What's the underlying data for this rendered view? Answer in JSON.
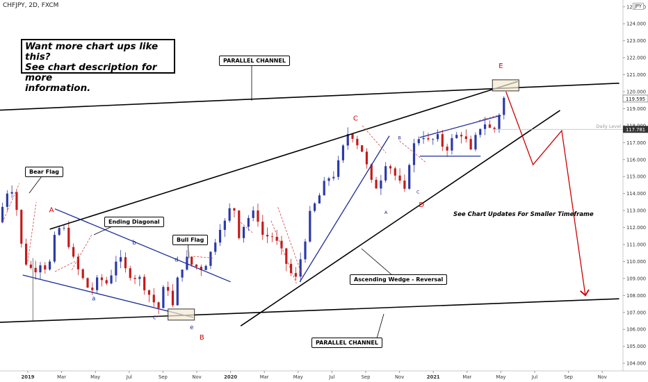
{
  "header": {
    "symbol": "CHFJPY, 2D, FXCM",
    "currency": "JPY"
  },
  "callout": {
    "line1": "Want more chart ups like this?",
    "line2": "See chart description for more",
    "line3": "information."
  },
  "labels": {
    "parallel_top": "PARALLEL CHANNEL",
    "parallel_bottom": "PARALLEL CHANNEL",
    "bear_flag": "Bear Flag",
    "ending_diagonal": "Ending Diagonal",
    "bull_flag": "Bull Flag",
    "ascending_wedge": "Ascending Wedge - Reversal",
    "updates_note": "See Chart Updates For Smaller Timeframe",
    "daily_level": "Daily Level"
  },
  "chart_data": {
    "type": "candlestick",
    "symbol": "CHFJPY",
    "timeframe": "2D",
    "y_range": [
      103.8,
      125.4
    ],
    "y_ticks": [
      104,
      105,
      106,
      107,
      108,
      109,
      110,
      111,
      112,
      113,
      114,
      115,
      116,
      117,
      118,
      119,
      120,
      121,
      122,
      123,
      124,
      125
    ],
    "y_tick_labels": [
      "104.000",
      "105.000",
      "106.000",
      "107.000",
      "108.000",
      "109.000",
      "110.000",
      "111.000",
      "112.000",
      "113.000",
      "114.000",
      "115.000",
      "116.000",
      "117.000",
      "118.000",
      "119.000",
      "120.000",
      "121.000",
      "122.000",
      "123.000",
      "124.000",
      "125.000"
    ],
    "x_tick_labels": [
      "2019",
      "Mar",
      "May",
      "Jul",
      "Sep",
      "Nov",
      "2020",
      "Mar",
      "May",
      "Jul",
      "Sep",
      "Nov",
      "2021",
      "Mar",
      "May",
      "Jul",
      "Sep",
      "Nov"
    ],
    "x_ticks_month_index": [
      0,
      2,
      4,
      6,
      8,
      10,
      12,
      14,
      16,
      18,
      20,
      22,
      24,
      26,
      28,
      30,
      32,
      34
    ],
    "price_labels": {
      "current": "119.595",
      "daily_level": "117.781"
    },
    "current_price": 119.595,
    "daily_level": 117.781,
    "wave_labels": [
      "A",
      "B",
      "C",
      "D",
      "E",
      "a",
      "b",
      "c",
      "d",
      "e",
      "A",
      "B",
      "C"
    ],
    "price_path": [
      [
        -1.5,
        112.3
      ],
      [
        -0.8,
        114.6
      ],
      [
        -0.5,
        114.0
      ],
      [
        0.0,
        110.2
      ],
      [
        0.6,
        109.4
      ],
      [
        1.0,
        110.0
      ],
      [
        1.5,
        109.5
      ],
      [
        2.0,
        112.0
      ],
      [
        2.5,
        111.8
      ],
      [
        3.0,
        110.0
      ],
      [
        3.5,
        109.0
      ],
      [
        4.0,
        108.2
      ],
      [
        4.5,
        109.0
      ],
      [
        5.0,
        108.7
      ],
      [
        5.6,
        110.4
      ],
      [
        6.0,
        109.5
      ],
      [
        6.5,
        109.2
      ],
      [
        7.0,
        108.9
      ],
      [
        7.5,
        108.0
      ],
      [
        8.0,
        107.2
      ],
      [
        8.5,
        109.0
      ],
      [
        8.8,
        107.0
      ],
      [
        9.2,
        109.2
      ],
      [
        9.6,
        110.2
      ],
      [
        10.0,
        109.8
      ],
      [
        10.5,
        109.6
      ],
      [
        10.8,
        109.9
      ],
      [
        11.2,
        110.7
      ],
      [
        11.6,
        112.1
      ],
      [
        12.0,
        112.3
      ],
      [
        12.4,
        113.6
      ],
      [
        12.8,
        111.5
      ],
      [
        13.2,
        112.5
      ],
      [
        13.8,
        112.9
      ],
      [
        14.2,
        111.5
      ],
      [
        14.8,
        111.5
      ],
      [
        15.3,
        110.5
      ],
      [
        15.9,
        109.2
      ],
      [
        16.1,
        108.8
      ],
      [
        16.5,
        110.5
      ],
      [
        17.0,
        112.8
      ],
      [
        17.6,
        114.0
      ],
      [
        18.0,
        114.9
      ],
      [
        18.5,
        115.2
      ],
      [
        18.8,
        116.2
      ],
      [
        19.3,
        117.8
      ],
      [
        19.7,
        117.1
      ],
      [
        20.1,
        116.5
      ],
      [
        20.6,
        114.6
      ],
      [
        21.0,
        114.4
      ],
      [
        21.5,
        116.0
      ],
      [
        22.0,
        115.1
      ],
      [
        22.6,
        114.0
      ],
      [
        22.9,
        116.2
      ],
      [
        23.2,
        117.0
      ],
      [
        23.6,
        117.6
      ],
      [
        24.0,
        117.0
      ],
      [
        24.5,
        117.3
      ],
      [
        25.0,
        116.6
      ],
      [
        25.5,
        117.3
      ],
      [
        26.0,
        117.6
      ],
      [
        26.5,
        116.4
      ],
      [
        27.0,
        117.9
      ],
      [
        27.4,
        118.2
      ],
      [
        27.8,
        117.5
      ],
      [
        28.2,
        118.8
      ],
      [
        28.4,
        119.6
      ]
    ],
    "trend_lines": [
      {
        "name": "parallel-channel-top",
        "color": "#000000",
        "points": [
          [
            -2.0,
            118.9
          ],
          [
            35.0,
            120.5
          ]
        ]
      },
      {
        "name": "parallel-channel-bottom",
        "color": "#000000",
        "points": [
          [
            -2.0,
            106.4
          ],
          [
            35.0,
            107.8
          ]
        ]
      },
      {
        "name": "wedge-upper",
        "color": "#000000",
        "points": [
          [
            1.3,
            111.9
          ],
          [
            29.0,
            120.6
          ]
        ]
      },
      {
        "name": "wedge-lower",
        "color": "#000000",
        "points": [
          [
            12.6,
            106.2
          ],
          [
            31.5,
            118.9
          ]
        ]
      },
      {
        "name": "diagonal-upper",
        "color": "#1a2b99",
        "points": [
          [
            1.6,
            113.1
          ],
          [
            12.0,
            108.8
          ]
        ]
      },
      {
        "name": "diagonal-lower",
        "color": "#1a2b99",
        "points": [
          [
            -0.3,
            109.2
          ],
          [
            9.8,
            106.7
          ]
        ]
      },
      {
        "name": "c-wave-line",
        "color": "#1a2b99",
        "points": [
          [
            16.1,
            108.8
          ],
          [
            21.4,
            117.4
          ]
        ]
      },
      {
        "name": "flag-top",
        "color": "#1a2b99",
        "points": [
          [
            23.2,
            117.3
          ],
          [
            28.0,
            118.6
          ]
        ]
      },
      {
        "name": "flag-bottom",
        "color": "#1a2b99",
        "points": [
          [
            23.2,
            116.2
          ],
          [
            26.8,
            116.2
          ]
        ]
      },
      {
        "name": "projection",
        "color": "#cc0000",
        "points": [
          [
            28.3,
            120.0
          ],
          [
            29.9,
            115.7
          ],
          [
            31.6,
            117.7
          ],
          [
            33.0,
            108.0
          ]
        ]
      }
    ]
  }
}
